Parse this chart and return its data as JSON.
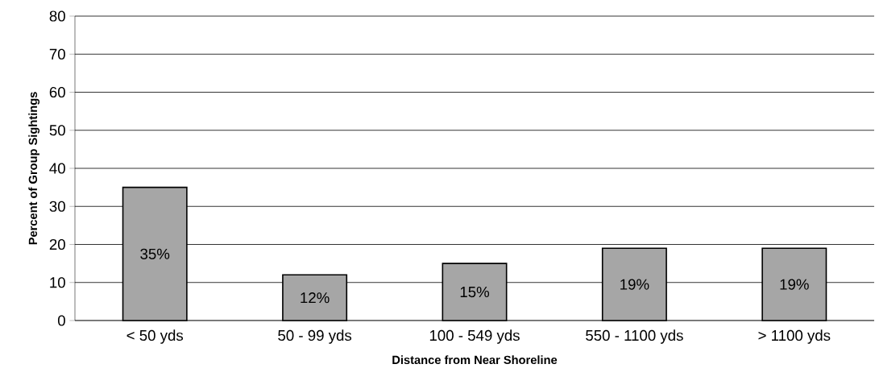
{
  "chart_data": {
    "type": "bar",
    "xlabel": "Distance from Near Shoreline",
    "ylabel": "Percent of Group Sightings",
    "categories": [
      "< 50 yds",
      "50 - 99 yds",
      "100 - 549 yds",
      "550 - 1100 yds",
      "> 1100 yds"
    ],
    "values": [
      35,
      12,
      15,
      19,
      19
    ],
    "value_labels": [
      "35%",
      "12%",
      "15%",
      "19%",
      "19%"
    ],
    "color": "#a6a6a6",
    "ylim": [
      0,
      80
    ],
    "yticks": [
      0,
      10,
      20,
      30,
      40,
      50,
      60,
      70,
      80
    ],
    "grid": "y"
  }
}
